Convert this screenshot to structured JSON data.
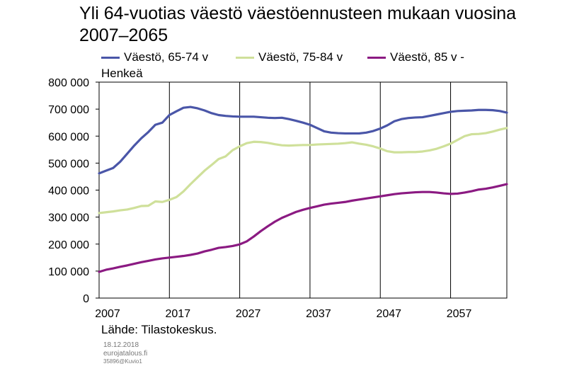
{
  "chart_data": {
    "type": "line",
    "title": "Yli 64-vuotias väestö väestöennusteen mukaan vuosina 2007–2065",
    "ylabel": "Henkeä",
    "xlabel": "",
    "ylim": [
      0,
      800000
    ],
    "xlim": [
      2007,
      2065
    ],
    "yticks": [
      0,
      100000,
      200000,
      300000,
      400000,
      500000,
      600000,
      700000,
      800000
    ],
    "ytick_labels": [
      "0",
      "100 000",
      "200 000",
      "300 000",
      "400 000",
      "500 000",
      "600 000",
      "700 000",
      "800 000"
    ],
    "xticks": [
      2007,
      2017,
      2027,
      2037,
      2047,
      2057
    ],
    "xtick_labels": [
      "2007",
      "2017",
      "2027",
      "2037",
      "2047",
      "2057"
    ],
    "grid": "vertical",
    "legend_position": "top",
    "series": [
      {
        "name": "Väestö, 65-74 v",
        "color": "#4a56a8",
        "x": [
          2007,
          2008,
          2009,
          2010,
          2011,
          2012,
          2013,
          2014,
          2015,
          2016,
          2017,
          2018,
          2019,
          2020,
          2021,
          2022,
          2023,
          2024,
          2025,
          2026,
          2027,
          2028,
          2029,
          2030,
          2031,
          2032,
          2033,
          2034,
          2035,
          2036,
          2037,
          2038,
          2039,
          2040,
          2041,
          2042,
          2043,
          2044,
          2045,
          2046,
          2047,
          2048,
          2049,
          2050,
          2051,
          2052,
          2053,
          2054,
          2055,
          2056,
          2057,
          2058,
          2059,
          2060,
          2061,
          2062,
          2063,
          2064,
          2065
        ],
        "values": [
          462000,
          472000,
          482000,
          505000,
          535000,
          565000,
          592000,
          615000,
          642000,
          650000,
          678000,
          692000,
          705000,
          708000,
          703000,
          695000,
          685000,
          678000,
          675000,
          673000,
          672000,
          672000,
          672000,
          670000,
          668000,
          667000,
          668000,
          663000,
          657000,
          650000,
          642000,
          630000,
          618000,
          613000,
          611000,
          610000,
          610000,
          610000,
          613000,
          619000,
          628000,
          640000,
          655000,
          663000,
          667000,
          669000,
          670000,
          675000,
          680000,
          685000,
          690000,
          693000,
          694000,
          695000,
          697000,
          697000,
          696000,
          693000,
          687000
        ]
      },
      {
        "name": "Väestö, 75-84 v",
        "color": "#cfe09a",
        "x": [
          2007,
          2008,
          2009,
          2010,
          2011,
          2012,
          2013,
          2014,
          2015,
          2016,
          2017,
          2018,
          2019,
          2020,
          2021,
          2022,
          2023,
          2024,
          2025,
          2026,
          2027,
          2028,
          2029,
          2030,
          2031,
          2032,
          2033,
          2034,
          2035,
          2036,
          2037,
          2038,
          2039,
          2040,
          2041,
          2042,
          2043,
          2044,
          2045,
          2046,
          2047,
          2048,
          2049,
          2050,
          2051,
          2052,
          2053,
          2054,
          2055,
          2056,
          2057,
          2058,
          2059,
          2060,
          2061,
          2062,
          2063,
          2064,
          2065
        ],
        "values": [
          315000,
          318000,
          321000,
          325000,
          328000,
          334000,
          341000,
          342000,
          358000,
          356000,
          364000,
          374000,
          395000,
          422000,
          447000,
          472000,
          493000,
          515000,
          525000,
          548000,
          562000,
          574000,
          579000,
          578000,
          575000,
          570000,
          566000,
          565000,
          566000,
          567000,
          567000,
          569000,
          570000,
          571000,
          572000,
          574000,
          577000,
          572000,
          568000,
          562000,
          554000,
          544000,
          540000,
          540000,
          541000,
          541000,
          543000,
          547000,
          553000,
          562000,
          572000,
          586000,
          600000,
          607000,
          608000,
          611000,
          617000,
          624000,
          630000
        ]
      },
      {
        "name": "Väestö, 85 v -",
        "color": "#8b1a82",
        "x": [
          2007,
          2008,
          2009,
          2010,
          2011,
          2012,
          2013,
          2014,
          2015,
          2016,
          2017,
          2018,
          2019,
          2020,
          2021,
          2022,
          2023,
          2024,
          2025,
          2026,
          2027,
          2028,
          2029,
          2030,
          2031,
          2032,
          2033,
          2034,
          2035,
          2036,
          2037,
          2038,
          2039,
          2040,
          2041,
          2042,
          2043,
          2044,
          2045,
          2046,
          2047,
          2048,
          2049,
          2050,
          2051,
          2052,
          2053,
          2054,
          2055,
          2056,
          2057,
          2058,
          2059,
          2060,
          2061,
          2062,
          2063,
          2064,
          2065
        ],
        "values": [
          97000,
          105000,
          110000,
          116000,
          121000,
          127000,
          133000,
          138000,
          143000,
          147000,
          150000,
          153000,
          156000,
          160000,
          165000,
          173000,
          179000,
          186000,
          189000,
          193000,
          199000,
          210000,
          228000,
          248000,
          266000,
          283000,
          297000,
          308000,
          319000,
          327000,
          334000,
          340000,
          346000,
          350000,
          353000,
          356000,
          361000,
          365000,
          369000,
          373000,
          377000,
          381000,
          385000,
          388000,
          390000,
          392000,
          393000,
          393000,
          391000,
          388000,
          386000,
          387000,
          391000,
          396000,
          402000,
          405000,
          410000,
          416000,
          422000
        ]
      }
    ]
  },
  "source": "Lähde: Tilastokeskus.",
  "meta": {
    "date": "18.12.2018",
    "site": "eurojatalous.fi",
    "code": "35896@Kuvio1"
  }
}
